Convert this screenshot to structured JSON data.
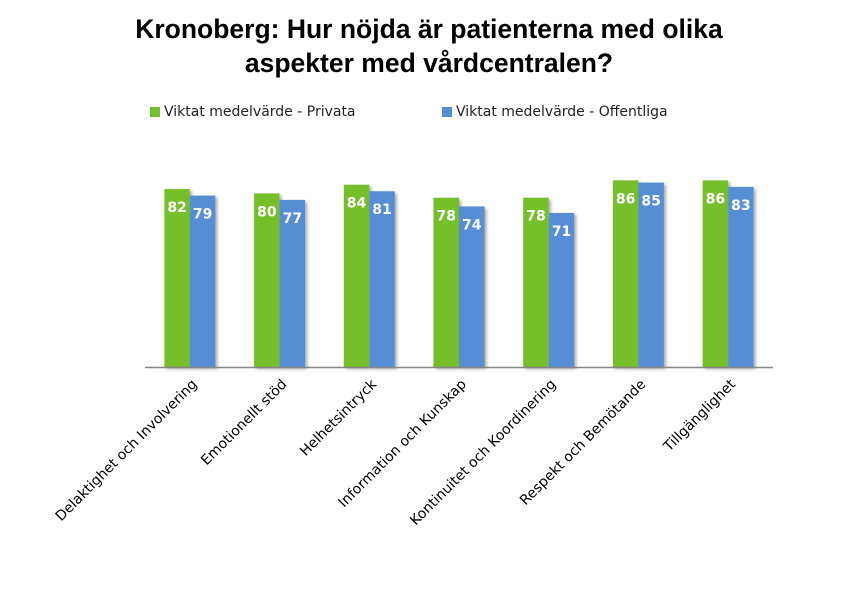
{
  "chart_data": {
    "type": "bar",
    "title": "Kronoberg: Hur nöjda är patienterna med olika aspekter med vårdcentralen?",
    "title_lines": [
      "Kronoberg: Hur nöjda är patienterna med olika",
      "aspekter med vårdcentralen?"
    ],
    "xlabel": "",
    "ylabel": "",
    "ylim": [
      0,
      100
    ],
    "grid": false,
    "legend_position": "top",
    "categories": [
      "Delaktighet och Involvering",
      "Emotionellt stöd",
      "Helhetsintryck",
      "Information och Kunskap",
      "Kontinuitet och Koordinering",
      "Respekt och Bemötande",
      "Tillgänglighet"
    ],
    "series": [
      {
        "name": "Viktat medelvärde - Privata",
        "color": "#76bf2a",
        "values": [
          82,
          80,
          84,
          78,
          78,
          86,
          86
        ]
      },
      {
        "name": "Viktat medelvärde - Offentliga",
        "color": "#558ed5",
        "values": [
          79,
          77,
          81,
          74,
          71,
          85,
          83
        ]
      }
    ]
  }
}
